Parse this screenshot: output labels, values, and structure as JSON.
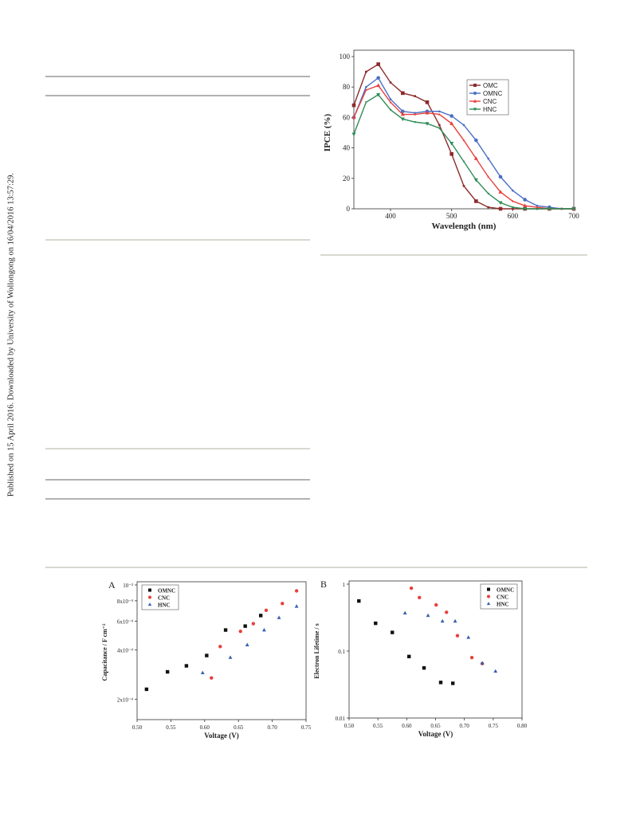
{
  "watermark": "Published on 15 April 2016. Downloaded by University of Wollongong on 16/04/2016 13:57:29.",
  "chart_data": [
    {
      "type": "line",
      "xlabel": "Wavelength (nm)",
      "ylabel": "IPCE (%)",
      "x": [
        340,
        360,
        380,
        400,
        420,
        440,
        460,
        480,
        500,
        520,
        540,
        560,
        580,
        600,
        620,
        640,
        660,
        680,
        700
      ],
      "xlim": [
        340,
        700
      ],
      "xticks": [
        400,
        500,
        600,
        700
      ],
      "ylim": [
        0,
        100
      ],
      "yticks": [
        0,
        20,
        40,
        60,
        80,
        100
      ],
      "legend": "upper right",
      "series": [
        {
          "name": "OMC",
          "color": "#8b2b2b",
          "marker": "square",
          "values": [
            68,
            90,
            95,
            83,
            76,
            74,
            70,
            55,
            36,
            15,
            5,
            1,
            0,
            0,
            0,
            0,
            0,
            0,
            0
          ]
        },
        {
          "name": "OMNC",
          "color": "#4a6fc4",
          "marker": "circle",
          "values": [
            60,
            80,
            86,
            72,
            64,
            63,
            64,
            64,
            61,
            55,
            45,
            33,
            21,
            12,
            6,
            2,
            1,
            0,
            0
          ]
        },
        {
          "name": "CNC",
          "color": "#e8403c",
          "marker": "triangle-up",
          "values": [
            60,
            78,
            81,
            70,
            62,
            62,
            63,
            62,
            56,
            45,
            33,
            21,
            11,
            5,
            2,
            1,
            0,
            0,
            0
          ]
        },
        {
          "name": "HNC",
          "color": "#2e8b57",
          "marker": "triangle-down",
          "values": [
            49,
            70,
            75,
            65,
            59,
            57,
            56,
            53,
            43,
            31,
            19,
            10,
            4,
            1,
            0,
            0,
            0,
            0,
            0
          ]
        }
      ]
    },
    {
      "type": "scatter",
      "label": "A",
      "xlabel": "Voltage (V)",
      "ylabel": "Capacitance / F cm⁻²",
      "ylog": true,
      "xlim": [
        0.5,
        0.75
      ],
      "xticks": [
        {
          "value": 0.5,
          "label": "0.50"
        },
        0.55,
        {
          "value": 0.6,
          "label": "0.60"
        },
        0.65,
        {
          "value": 0.7,
          "label": "0.70"
        },
        0.75
      ],
      "ylim": [
        0.00015,
        0.001
      ],
      "yticks": [
        {
          "value": 0.0002,
          "label": "2x10⁻⁴"
        },
        {
          "value": 0.0004,
          "label": "4x10⁻⁴"
        },
        {
          "value": 0.0006,
          "label": "6x10⁻⁴"
        },
        {
          "value": 0.0008,
          "label": "8x10⁻⁴"
        },
        {
          "value": 0.001,
          "label": "10⁻³"
        }
      ],
      "legend": "upper left",
      "series": [
        {
          "name": "OMNC",
          "color": "#111111",
          "marker": "square",
          "x": [
            0.514,
            0.545,
            0.573,
            0.603,
            0.631,
            0.66,
            0.683
          ],
          "values": [
            0.00023,
            0.000294,
            0.00032,
            0.00037,
            0.00053,
            0.00056,
            0.00065
          ]
        },
        {
          "name": "CNC",
          "color": "#e8403c",
          "marker": "circle",
          "x": [
            0.61,
            0.623,
            0.653,
            0.672,
            0.691,
            0.715,
            0.736
          ],
          "values": [
            0.00027,
            0.00042,
            0.00052,
            0.00058,
            0.0007,
            0.00077,
            0.00092
          ]
        },
        {
          "name": "HNC",
          "color": "#3a5fb0",
          "marker": "triangle-up",
          "x": [
            0.597,
            0.638,
            0.663,
            0.688,
            0.71,
            0.736
          ],
          "values": [
            0.00029,
            0.00036,
            0.00043,
            0.00053,
            0.00063,
            0.00074
          ]
        }
      ]
    },
    {
      "type": "scatter",
      "label": "B",
      "xlabel": "Voltage (V)",
      "ylabel": "Electron Lifetime / s",
      "ylog": true,
      "xlim": [
        0.5,
        0.8
      ],
      "xticks": [
        {
          "value": 0.5,
          "label": "0.50"
        },
        0.55,
        {
          "value": 0.6,
          "label": "0.60"
        },
        0.65,
        {
          "value": 0.7,
          "label": "0.70"
        },
        0.75,
        {
          "value": 0.8,
          "label": "0.80"
        }
      ],
      "ylim": [
        0.01,
        1
      ],
      "yticks": [
        0.01,
        0.1,
        1
      ],
      "legend": "upper right",
      "series": [
        {
          "name": "OMNC",
          "color": "#111111",
          "marker": "square",
          "x": [
            0.517,
            0.546,
            0.575,
            0.604,
            0.63,
            0.659,
            0.68
          ],
          "values": [
            0.56,
            0.26,
            0.19,
            0.083,
            0.056,
            0.034,
            0.033
          ]
        },
        {
          "name": "CNC",
          "color": "#e8403c",
          "marker": "circle",
          "x": [
            0.608,
            0.622,
            0.651,
            0.669,
            0.688,
            0.713,
            0.731
          ],
          "values": [
            0.87,
            0.63,
            0.49,
            0.38,
            0.17,
            0.08,
            0.065
          ]
        },
        {
          "name": "HNC",
          "color": "#3a5fb0",
          "marker": "triangle-up",
          "x": [
            0.597,
            0.637,
            0.662,
            0.684,
            0.707,
            0.731,
            0.754
          ],
          "values": [
            0.37,
            0.34,
            0.28,
            0.28,
            0.16,
            0.066,
            0.05
          ]
        }
      ]
    }
  ]
}
